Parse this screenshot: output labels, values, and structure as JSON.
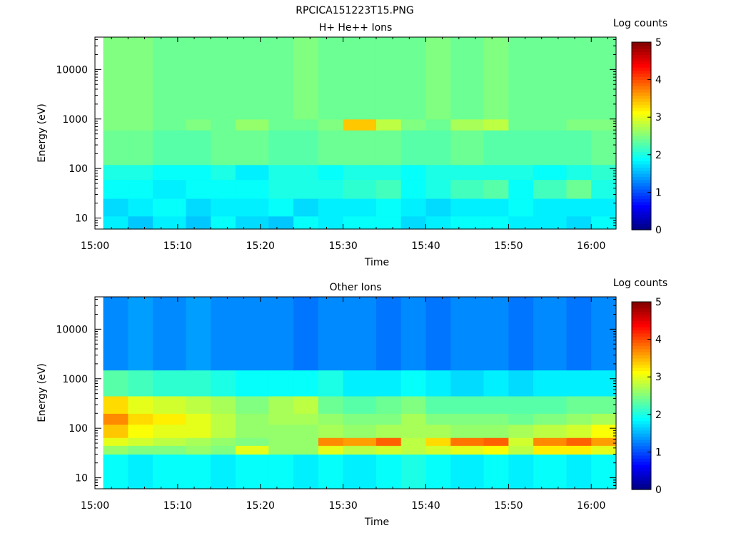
{
  "figure_title": "RPCICA151223T15.PNG",
  "chart_data": [
    {
      "type": "heatmap",
      "title": "H+ He++ Ions",
      "xlabel": "Time",
      "ylabel": "Energy (eV)",
      "y_scale": "log",
      "x_ticks": [
        "15:00",
        "15:10",
        "15:20",
        "15:30",
        "15:40",
        "15:50",
        "16:00"
      ],
      "x_range_minutes": [
        0,
        63
      ],
      "y_ticks": [
        "10",
        "100",
        "1000",
        "10000"
      ],
      "y_range": [
        6,
        45000
      ],
      "colorbar": {
        "label": "Log counts",
        "range": [
          0,
          5
        ],
        "ticks": [
          "0",
          "1",
          "2",
          "3",
          "4",
          "5"
        ]
      },
      "time_bins": [
        "15:01",
        "15:04",
        "15:07",
        "15:11",
        "15:14",
        "15:17",
        "15:21",
        "15:24",
        "15:27",
        "15:30",
        "15:34",
        "15:37",
        "15:40",
        "15:43",
        "15:47",
        "15:50",
        "15:53",
        "15:57",
        "16:00"
      ],
      "energy_bands": [
        {
          "from": 6,
          "to": 11,
          "values": [
            1.8,
            1.6,
            1.8,
            1.6,
            1.9,
            1.7,
            1.6,
            1.9,
            1.8,
            1.9,
            1.9,
            1.7,
            1.8,
            1.9,
            1.9,
            1.8,
            1.8,
            1.7,
            1.9
          ]
        },
        {
          "from": 11,
          "to": 25,
          "values": [
            1.7,
            1.8,
            1.9,
            1.7,
            1.8,
            1.8,
            1.9,
            1.7,
            1.8,
            1.8,
            1.9,
            1.8,
            1.7,
            1.8,
            1.8,
            1.9,
            1.8,
            1.8,
            1.8
          ]
        },
        {
          "from": 25,
          "to": 60,
          "values": [
            1.9,
            1.9,
            1.8,
            1.9,
            1.9,
            1.9,
            2.0,
            2.0,
            2.0,
            2.1,
            2.2,
            1.9,
            2.0,
            2.2,
            2.3,
            1.9,
            2.2,
            2.4,
            2.0
          ]
        },
        {
          "from": 60,
          "to": 120,
          "values": [
            2.0,
            2.0,
            1.9,
            1.9,
            2.0,
            1.8,
            2.0,
            2.0,
            1.9,
            2.0,
            2.0,
            1.9,
            2.0,
            2.0,
            2.0,
            2.0,
            1.9,
            2.0,
            2.1
          ]
        },
        {
          "from": 120,
          "to": 600,
          "values": [
            2.4,
            2.4,
            2.3,
            2.3,
            2.4,
            2.4,
            2.3,
            2.3,
            2.4,
            2.4,
            2.4,
            2.3,
            2.3,
            2.4,
            2.3,
            2.3,
            2.3,
            2.3,
            2.4
          ]
        },
        {
          "from": 600,
          "to": 1000,
          "values": [
            2.5,
            2.5,
            2.4,
            2.5,
            2.4,
            2.6,
            2.4,
            2.4,
            2.5,
            3.4,
            2.8,
            2.5,
            2.4,
            2.7,
            2.8,
            2.4,
            2.4,
            2.5,
            2.5
          ]
        },
        {
          "from": 1000,
          "to": 45000,
          "values": [
            2.5,
            2.5,
            2.4,
            2.4,
            2.4,
            2.4,
            2.4,
            2.5,
            2.4,
            2.4,
            2.4,
            2.4,
            2.5,
            2.4,
            2.5,
            2.4,
            2.4,
            2.4,
            2.4
          ]
        }
      ]
    },
    {
      "type": "heatmap",
      "title": "Other Ions",
      "xlabel": "Time",
      "ylabel": "Energy (eV)",
      "y_scale": "log",
      "x_ticks": [
        "15:00",
        "15:10",
        "15:20",
        "15:30",
        "15:40",
        "15:50",
        "16:00"
      ],
      "x_range_minutes": [
        0,
        63
      ],
      "y_ticks": [
        "10",
        "100",
        "1000",
        "10000"
      ],
      "y_range": [
        6,
        45000
      ],
      "colorbar": {
        "label": "Log counts",
        "range": [
          0,
          5
        ],
        "ticks": [
          "0",
          "1",
          "2",
          "3",
          "4",
          "5"
        ]
      },
      "time_bins": [
        "15:01",
        "15:04",
        "15:07",
        "15:11",
        "15:14",
        "15:17",
        "15:21",
        "15:24",
        "15:27",
        "15:30",
        "15:34",
        "15:37",
        "15:40",
        "15:43",
        "15:47",
        "15:50",
        "15:53",
        "15:57",
        "16:00"
      ],
      "energy_bands": [
        {
          "from": 6,
          "to": 30,
          "values": [
            1.9,
            1.8,
            1.9,
            1.9,
            1.8,
            1.9,
            1.9,
            1.8,
            1.9,
            1.8,
            1.9,
            2.0,
            1.9,
            1.8,
            1.9,
            1.8,
            1.9,
            1.8,
            1.9
          ]
        },
        {
          "from": 30,
          "to": 45,
          "values": [
            2.6,
            2.5,
            2.5,
            2.6,
            2.5,
            3.0,
            2.6,
            2.6,
            3.0,
            2.8,
            2.9,
            2.8,
            2.9,
            3.0,
            3.1,
            2.8,
            3.2,
            3.2,
            3.0
          ]
        },
        {
          "from": 45,
          "to": 65,
          "values": [
            3.0,
            2.9,
            2.8,
            2.7,
            2.6,
            2.5,
            2.6,
            2.6,
            3.7,
            3.6,
            3.9,
            2.8,
            3.3,
            3.8,
            3.9,
            2.9,
            3.7,
            3.9,
            3.6
          ]
        },
        {
          "from": 65,
          "to": 120,
          "values": [
            3.4,
            3.1,
            3.0,
            3.0,
            2.8,
            2.6,
            2.6,
            2.6,
            2.7,
            2.6,
            2.7,
            2.7,
            2.7,
            2.6,
            2.6,
            2.7,
            2.8,
            2.9,
            3.1
          ]
        },
        {
          "from": 120,
          "to": 200,
          "values": [
            3.7,
            3.3,
            3.2,
            3.0,
            2.8,
            2.6,
            2.7,
            2.7,
            2.6,
            2.5,
            2.5,
            2.7,
            2.5,
            2.5,
            2.5,
            2.4,
            2.5,
            2.6,
            2.7
          ]
        },
        {
          "from": 200,
          "to": 450,
          "values": [
            3.3,
            3.0,
            2.9,
            2.8,
            2.7,
            2.5,
            2.7,
            2.8,
            2.4,
            2.3,
            2.4,
            2.5,
            2.3,
            2.3,
            2.3,
            2.3,
            2.3,
            2.4,
            2.4
          ]
        },
        {
          "from": 450,
          "to": 1500,
          "values": [
            2.3,
            2.2,
            2.1,
            2.1,
            2.0,
            1.9,
            1.9,
            1.9,
            2.0,
            1.8,
            1.8,
            1.9,
            1.8,
            1.7,
            1.8,
            1.7,
            1.8,
            1.8,
            1.8
          ]
        },
        {
          "from": 1500,
          "to": 45000,
          "values": [
            1.3,
            1.4,
            1.3,
            1.4,
            1.3,
            1.3,
            1.3,
            1.2,
            1.3,
            1.3,
            1.2,
            1.3,
            1.2,
            1.3,
            1.3,
            1.2,
            1.3,
            1.2,
            1.3
          ]
        }
      ]
    }
  ]
}
